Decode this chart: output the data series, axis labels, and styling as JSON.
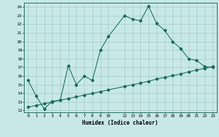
{
  "xlabel": "Humidex (Indice chaleur)",
  "background_color": "#c8e8e8",
  "line_color": "#1a6b5a",
  "grid_color": "#a0c8c8",
  "xlim": [
    -0.5,
    23.5
  ],
  "ylim": [
    11.8,
    24.5
  ],
  "xticks": [
    0,
    1,
    2,
    3,
    4,
    5,
    6,
    7,
    8,
    9,
    10,
    12,
    13,
    14,
    15,
    16,
    17,
    18,
    19,
    20,
    21,
    22,
    23
  ],
  "yticks": [
    12,
    13,
    14,
    15,
    16,
    17,
    18,
    19,
    20,
    21,
    22,
    23,
    24
  ],
  "curve1_x": [
    0,
    1,
    2,
    3,
    4,
    5,
    6,
    7,
    8,
    9,
    10,
    12,
    13,
    14,
    15,
    16,
    17,
    18,
    19,
    20,
    21,
    22,
    23
  ],
  "curve1_y": [
    15.5,
    13.7,
    12.2,
    13.1,
    13.2,
    17.2,
    15.0,
    16.0,
    15.5,
    19.0,
    20.6,
    23.0,
    22.6,
    22.4,
    24.1,
    22.1,
    21.3,
    20.0,
    19.2,
    18.0,
    17.8,
    17.1,
    17.0
  ],
  "curve2_x": [
    0,
    1,
    2,
    3,
    4,
    5,
    6,
    7,
    8,
    9,
    10,
    12,
    13,
    14,
    15,
    16,
    17,
    18,
    19,
    20,
    21,
    22,
    23
  ],
  "curve2_y": [
    12.4,
    12.6,
    12.8,
    13.0,
    13.2,
    13.4,
    13.6,
    13.8,
    14.0,
    14.2,
    14.4,
    14.8,
    15.0,
    15.2,
    15.4,
    15.65,
    15.85,
    16.05,
    16.25,
    16.5,
    16.7,
    16.9,
    17.1
  ],
  "marker": "D",
  "markersize": 2.0,
  "linewidth": 0.8
}
